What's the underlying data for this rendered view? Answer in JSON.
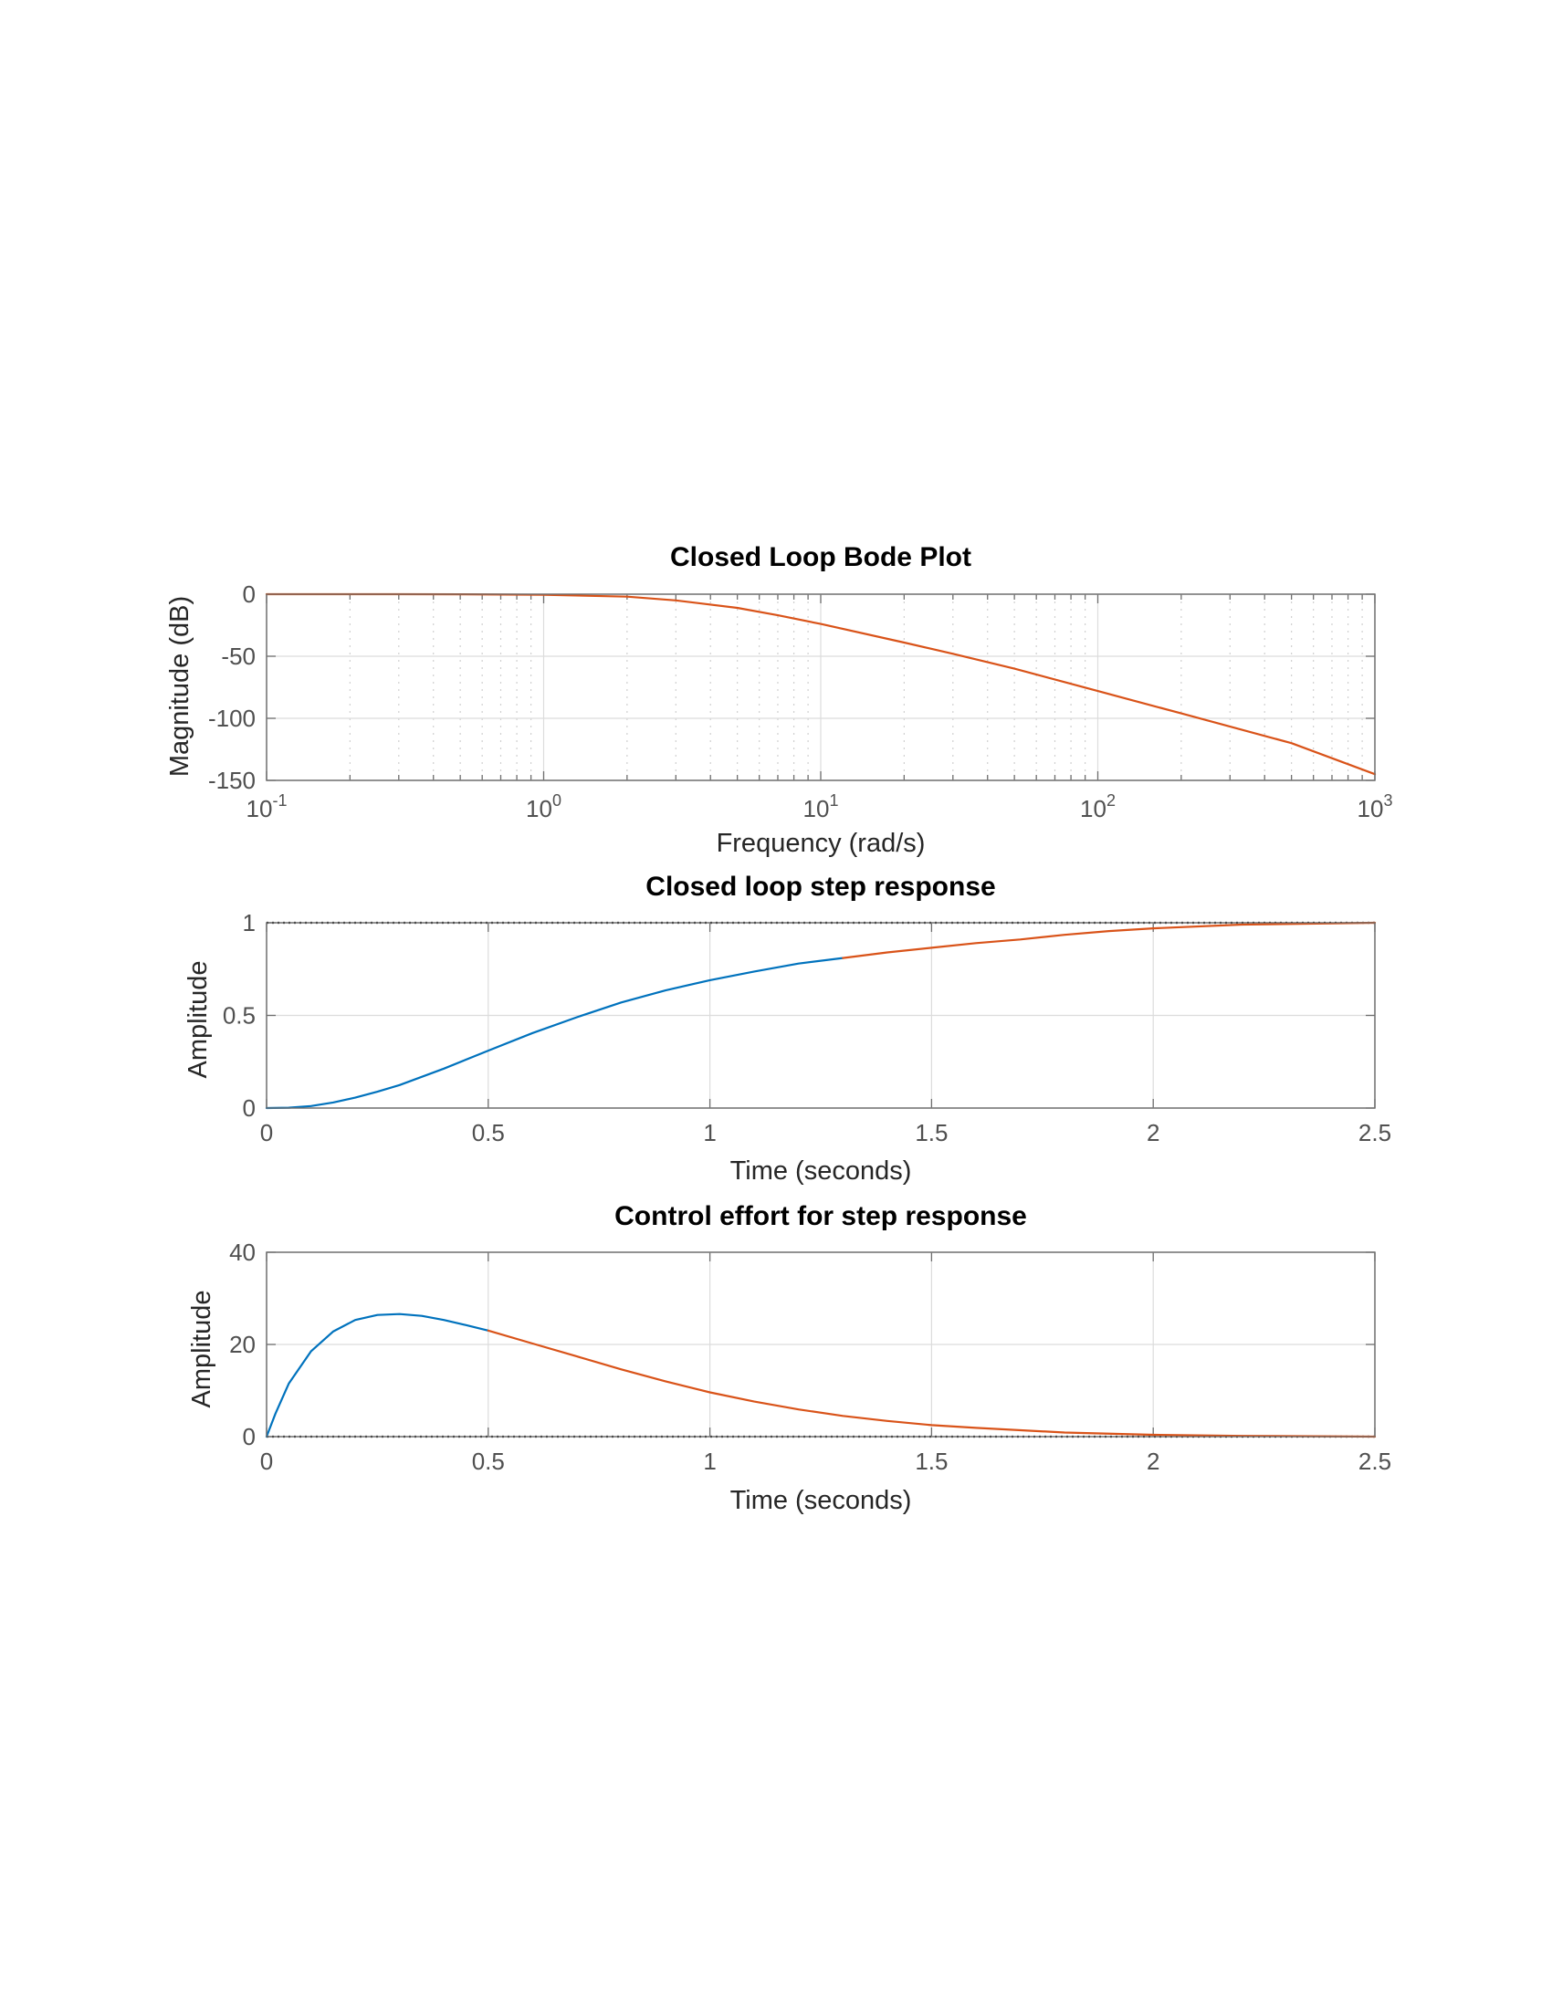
{
  "colors": {
    "blue": "#0072BD",
    "orange": "#D95319",
    "reference": "#111111"
  },
  "chart_data": [
    {
      "type": "line",
      "title": "Closed Loop Bode Plot",
      "xlabel": "Frequency  (rad/s)",
      "ylabel": "Magnitude (dB)",
      "xscale": "log",
      "xlim": [
        0.1,
        1000
      ],
      "ylim": [
        -150,
        0
      ],
      "xticks": [
        0.1,
        1,
        10,
        100,
        1000
      ],
      "xtick_labels": [
        {
          "base": "10",
          "exp": "-1"
        },
        {
          "base": "10",
          "exp": "0"
        },
        {
          "base": "10",
          "exp": "1"
        },
        {
          "base": "10",
          "exp": "2"
        },
        {
          "base": "10",
          "exp": "3"
        }
      ],
      "yticks": [
        0,
        -50,
        -100,
        -150
      ],
      "ytick_labels": [
        "0",
        "-50",
        "-100",
        "-150"
      ],
      "grid": true,
      "series": [
        {
          "color": "#D95319",
          "x": [
            0.1,
            0.3,
            0.5,
            1,
            2,
            3,
            5,
            7,
            10,
            20,
            30,
            50,
            100,
            200,
            500,
            1000
          ],
          "y": [
            0,
            0,
            -0.1,
            -0.5,
            -2,
            -5,
            -11,
            -17,
            -24,
            -39,
            -48,
            -60,
            -78,
            -96,
            -120,
            -145
          ]
        }
      ]
    },
    {
      "type": "line",
      "title": "Closed loop step response",
      "xlabel": "Time (seconds)",
      "ylabel": "Amplitude",
      "xlim": [
        0,
        2.5
      ],
      "ylim": [
        0,
        1
      ],
      "xticks": [
        0,
        0.5,
        1,
        1.5,
        2,
        2.5
      ],
      "xtick_labels": [
        "0",
        "0.5",
        "1",
        "1.5",
        "2",
        "2.5"
      ],
      "yticks": [
        0,
        0.5,
        1
      ],
      "ytick_labels": [
        "0",
        "0.5",
        "1"
      ],
      "grid": true,
      "reference_line": 1,
      "series": [
        {
          "color": "#0072BD",
          "x": [
            0,
            0.05,
            0.1,
            0.15,
            0.2,
            0.25,
            0.3,
            0.4,
            0.5,
            0.6,
            0.7,
            0.8,
            0.9,
            1.0,
            1.1,
            1.2,
            1.3
          ],
          "y": [
            0,
            0.002,
            0.011,
            0.03,
            0.056,
            0.088,
            0.124,
            0.213,
            0.31,
            0.405,
            0.49,
            0.57,
            0.635,
            0.69,
            0.737,
            0.78,
            0.81
          ]
        },
        {
          "color": "#D95319",
          "x": [
            1.3,
            1.4,
            1.5,
            1.6,
            1.7,
            1.8,
            1.9,
            2.0,
            2.2,
            2.5
          ],
          "y": [
            0.81,
            0.84,
            0.865,
            0.89,
            0.91,
            0.935,
            0.955,
            0.97,
            0.99,
            1.0
          ]
        }
      ]
    },
    {
      "type": "line",
      "title": "Control effort for step response",
      "xlabel": "Time (seconds)",
      "ylabel": "Amplitude",
      "xlim": [
        0,
        2.5
      ],
      "ylim": [
        0,
        40
      ],
      "xticks": [
        0,
        0.5,
        1,
        1.5,
        2,
        2.5
      ],
      "xtick_labels": [
        "0",
        "0.5",
        "1",
        "1.5",
        "2",
        "2.5"
      ],
      "yticks": [
        0,
        20,
        40
      ],
      "ytick_labels": [
        "0",
        "20",
        "40"
      ],
      "grid": true,
      "reference_line": 0,
      "series": [
        {
          "color": "#0072BD",
          "x": [
            0,
            0.02,
            0.05,
            0.1,
            0.15,
            0.2,
            0.25,
            0.3,
            0.35,
            0.4,
            0.45,
            0.5
          ],
          "y": [
            0,
            5,
            11.5,
            18.5,
            22.8,
            25.3,
            26.4,
            26.6,
            26.2,
            25.3,
            24.2,
            23
          ]
        },
        {
          "color": "#D95319",
          "x": [
            0.5,
            0.6,
            0.7,
            0.8,
            0.9,
            1.0,
            1.1,
            1.2,
            1.3,
            1.4,
            1.5,
            1.6,
            1.8,
            2.0,
            2.2,
            2.5
          ],
          "y": [
            23,
            20.2,
            17.4,
            14.6,
            12,
            9.6,
            7.6,
            5.9,
            4.5,
            3.4,
            2.5,
            1.9,
            0.9,
            0.4,
            0.15,
            0
          ]
        }
      ]
    }
  ]
}
